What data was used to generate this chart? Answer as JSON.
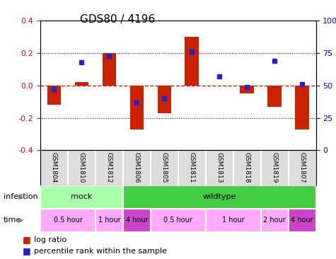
{
  "title": "GDS80 / 4196",
  "samples": [
    "GSM1804",
    "GSM1810",
    "GSM1812",
    "GSM1806",
    "GSM1805",
    "GSM1811",
    "GSM1813",
    "GSM1818",
    "GSM1819",
    "GSM1807"
  ],
  "log_ratio": [
    -0.12,
    0.02,
    0.2,
    -0.27,
    -0.17,
    0.3,
    0.0,
    -0.05,
    -0.13,
    -0.27
  ],
  "percentile": [
    47,
    68,
    73,
    37,
    40,
    76,
    57,
    49,
    69,
    51
  ],
  "ylim": [
    -0.4,
    0.4
  ],
  "yticks_left": [
    -0.4,
    -0.2,
    0.0,
    0.2,
    0.4
  ],
  "yticks_right": [
    0,
    25,
    50,
    75,
    100
  ],
  "bar_color": "#cc2200",
  "dot_color": "#2222cc",
  "zero_line_color": "#cc2200",
  "grid_color": "#000000",
  "infection_groups": [
    {
      "label": "mock",
      "start": 0,
      "end": 3,
      "color": "#aaffaa"
    },
    {
      "label": "wildtype",
      "start": 3,
      "end": 10,
      "color": "#44cc44"
    }
  ],
  "time_groups": [
    {
      "label": "0.5 hour",
      "start": 0,
      "end": 2,
      "color": "#ffaaff"
    },
    {
      "label": "1 hour",
      "start": 2,
      "end": 3,
      "color": "#ffaaff"
    },
    {
      "label": "4 hour",
      "start": 3,
      "end": 4,
      "color": "#cc44cc"
    },
    {
      "label": "0.5 hour",
      "start": 4,
      "end": 6,
      "color": "#ffaaff"
    },
    {
      "label": "1 hour",
      "start": 6,
      "end": 8,
      "color": "#ffaaff"
    },
    {
      "label": "2 hour",
      "start": 8,
      "end": 9,
      "color": "#ffaaff"
    },
    {
      "label": "4 hour",
      "start": 9,
      "end": 10,
      "color": "#cc44cc"
    }
  ],
  "legend_bar_label": "log ratio",
  "legend_dot_label": "percentile rank within the sample",
  "infection_label": "infection",
  "time_label": "time"
}
